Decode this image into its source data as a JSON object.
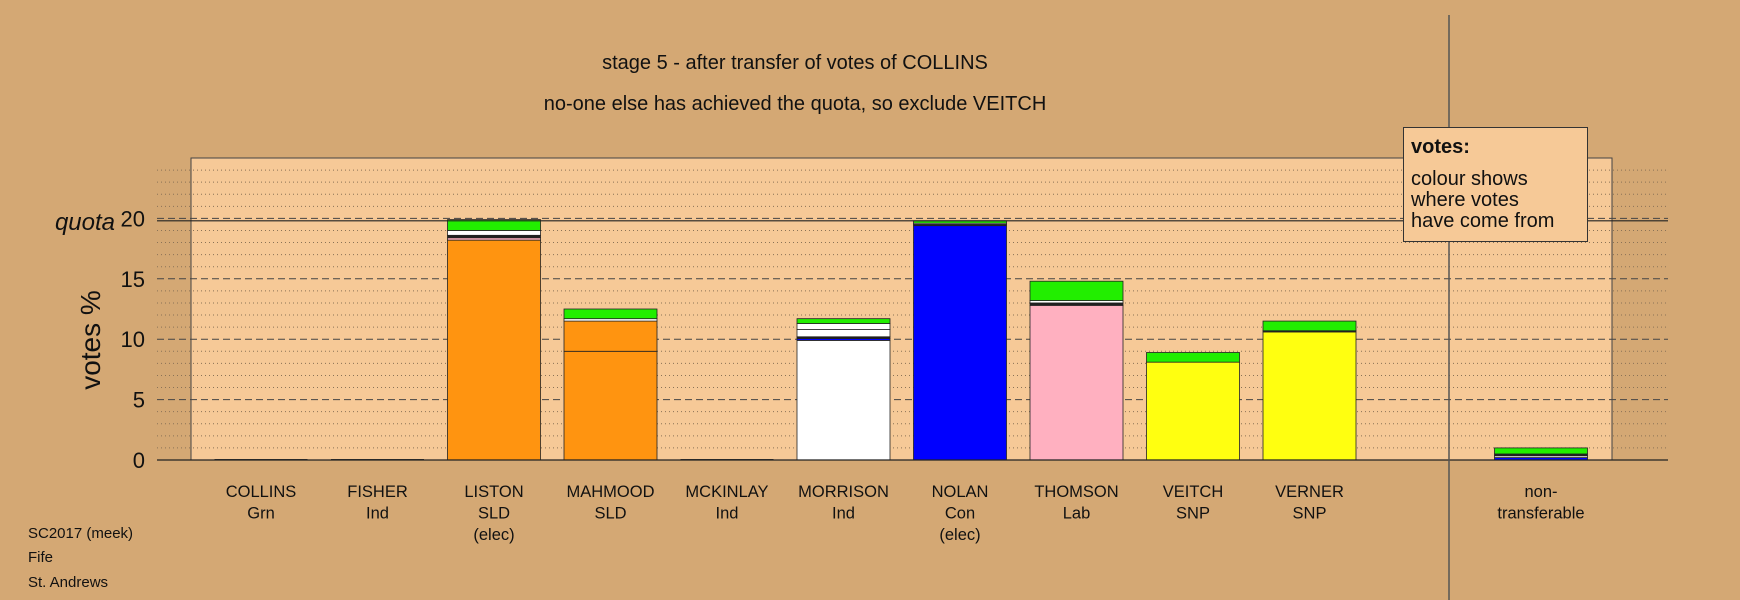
{
  "title": "stage 5 - after transfer of votes of COLLINS",
  "subtitle": "no-one else has achieved the quota, so exclude VEITCH",
  "footer": {
    "line1": "SC2017 (meek)",
    "line2": "Fife",
    "line3": "St. Andrews"
  },
  "legend": {
    "title": "votes:",
    "text": "colour shows\nwhere votes\nhave come from"
  },
  "colors": {
    "background": "#d4a874",
    "plot": "#f6c997",
    "Grn": "#22ee00",
    "Ind": "#ffffff",
    "SLD": "#ff9410",
    "Con": "#0000ff",
    "Lab": "#ffb0c0",
    "SNP": "#ffff10",
    "Ind2": "#202020"
  },
  "chart_data": {
    "type": "bar",
    "ylabel": "votes %",
    "quota_label": "quota",
    "quota": 19.8,
    "ylim": [
      0,
      25
    ],
    "yticks": [
      0,
      5,
      10,
      15,
      20
    ],
    "grid": true,
    "legend_position": "top-right",
    "categories": [
      {
        "name": "COLLINS",
        "party": "Grn",
        "note": ""
      },
      {
        "name": "FISHER",
        "party": "Ind",
        "note": ""
      },
      {
        "name": "LISTON",
        "party": "SLD",
        "note": "(elec)"
      },
      {
        "name": "MAHMOOD",
        "party": "SLD",
        "note": ""
      },
      {
        "name": "MCKINLAY",
        "party": "Ind",
        "note": ""
      },
      {
        "name": "MORRISON",
        "party": "Ind",
        "note": ""
      },
      {
        "name": "NOLAN",
        "party": "Con",
        "note": "(elec)"
      },
      {
        "name": "THOMSON",
        "party": "Lab",
        "note": ""
      },
      {
        "name": "VEITCH",
        "party": "SNP",
        "note": ""
      },
      {
        "name": "VERNER",
        "party": "SNP",
        "note": ""
      },
      {
        "name": "non-\ntransferable",
        "party": "",
        "note": ""
      }
    ],
    "bars": [
      [],
      [],
      [
        {
          "source": "SLD",
          "value": 18.2
        },
        {
          "source": "Lab",
          "value": 0.2
        },
        {
          "source": "Ind2",
          "value": 0.2
        },
        {
          "source": "Ind",
          "value": 0.4
        },
        {
          "source": "Grn",
          "value": 0.9
        }
      ],
      [
        {
          "source": "SLD",
          "value": 9.0
        },
        {
          "source": "SLD",
          "value": 2.5
        },
        {
          "source": "Ind",
          "value": 0.2
        },
        {
          "source": "Grn",
          "value": 0.8
        }
      ],
      [],
      [
        {
          "source": "Ind",
          "value": 9.9
        },
        {
          "source": "Con",
          "value": 0.15
        },
        {
          "source": "Ind2",
          "value": 0.15
        },
        {
          "source": "Ind",
          "value": 0.6
        },
        {
          "source": "Ind",
          "value": 0.5
        },
        {
          "source": "Grn",
          "value": 0.4
        }
      ],
      [
        {
          "source": "Con",
          "value": 19.4
        },
        {
          "source": "Ind2",
          "value": 0.1
        },
        {
          "source": "Ind",
          "value": 0.1
        },
        {
          "source": "Grn",
          "value": 0.2
        }
      ],
      [
        {
          "source": "Lab",
          "value": 12.8
        },
        {
          "source": "Ind2",
          "value": 0.2
        },
        {
          "source": "Ind",
          "value": 0.2
        },
        {
          "source": "Grn",
          "value": 1.6
        }
      ],
      [
        {
          "source": "SNP",
          "value": 8.1
        },
        {
          "source": "Grn",
          "value": 0.8
        }
      ],
      [
        {
          "source": "SNP",
          "value": 10.6
        },
        {
          "source": "Ind2",
          "value": 0.1
        },
        {
          "source": "Grn",
          "value": 0.8
        }
      ],
      [
        {
          "source": "Con",
          "value": 0.2
        },
        {
          "source": "Ind",
          "value": 0.15
        },
        {
          "source": "Ind2",
          "value": 0.15
        },
        {
          "source": "Grn",
          "value": 0.5
        }
      ]
    ]
  }
}
